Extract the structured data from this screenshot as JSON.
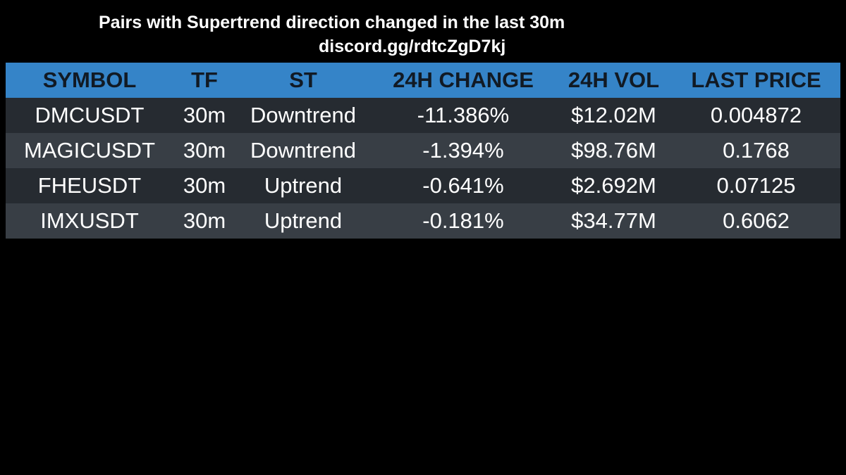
{
  "header": {
    "title": "Pairs with Supertrend direction changed in the last 30m",
    "subtitle": "discord.gg/rdtcZgD7kj"
  },
  "table": {
    "columns": [
      "SYMBOL",
      "TF",
      "ST",
      "24H CHANGE",
      "24H VOL",
      "LAST PRICE"
    ],
    "rows": [
      [
        "DMCUSDT",
        "30m",
        "Downtrend",
        "-11.386%",
        "$12.02M",
        "0.004872"
      ],
      [
        "MAGICUSDT",
        "30m",
        "Downtrend",
        "-1.394%",
        "$98.76M",
        "0.1768"
      ],
      [
        "FHEUSDT",
        "30m",
        "Uptrend",
        "-0.641%",
        "$2.692M",
        "0.07125"
      ],
      [
        "IMXUSDT",
        "30m",
        "Uptrend",
        "-0.181%",
        "$34.77M",
        "0.6062"
      ]
    ]
  },
  "colors": {
    "background": "#000000",
    "header_bg": "#3584c8",
    "header_text": "#111a24",
    "row_dark": "#262b31",
    "row_light": "#383e45",
    "text": "#ffffff"
  }
}
